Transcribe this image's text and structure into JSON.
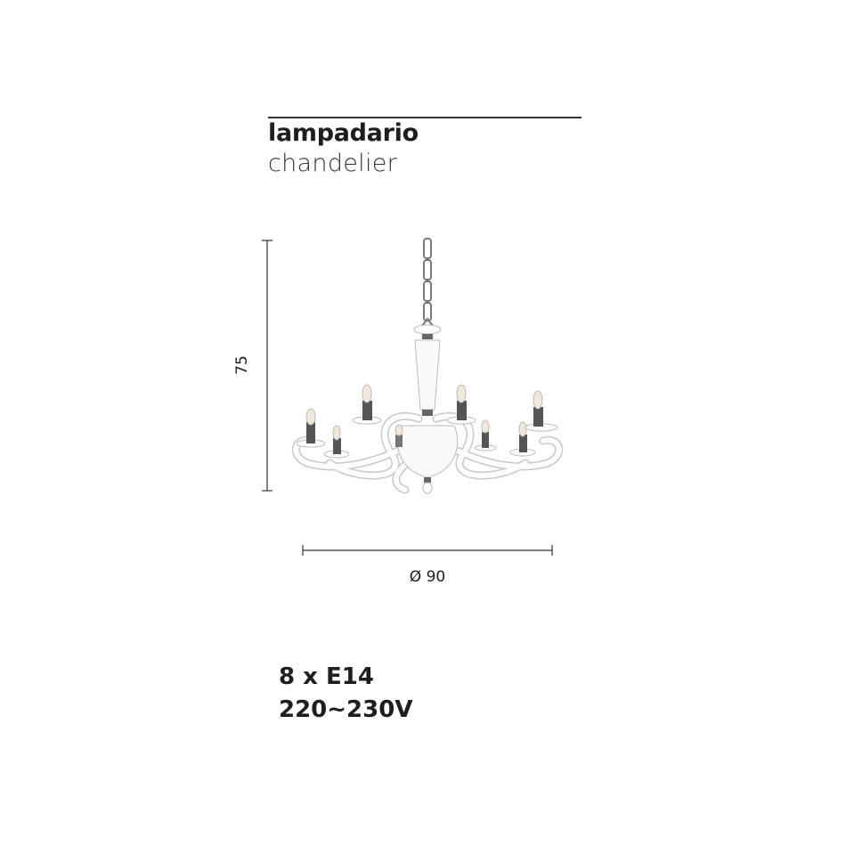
{
  "header": {
    "title_it": "lampadario",
    "title_en": "chandelier"
  },
  "dimensions": {
    "height": "75",
    "diameter": "Ø 90"
  },
  "specs": {
    "bulbs": "8 x E14",
    "voltage": "220~230V"
  },
  "image": {
    "subject": "chandelier-product-photo"
  }
}
